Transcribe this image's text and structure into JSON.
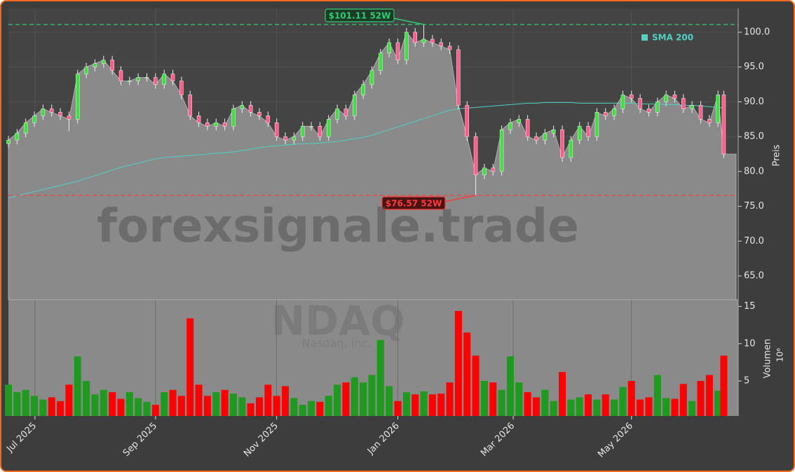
{
  "chart_data": {
    "type": "candlestick",
    "watermark": "forexsignale.trade",
    "ticker": "NDAQ",
    "company": "Nasdaq, Inc.",
    "x": [
      0,
      3,
      6,
      9,
      12,
      15,
      18,
      21,
      24,
      27,
      30,
      33,
      36,
      39,
      42,
      45,
      48,
      51,
      54,
      57,
      60,
      63,
      66,
      69,
      72,
      75,
      78,
      81,
      84,
      87,
      90,
      93,
      96,
      99,
      102,
      105,
      108,
      111,
      114,
      117,
      120,
      123,
      126,
      129,
      132,
      135,
      138,
      141,
      144,
      147,
      150,
      153,
      156,
      159,
      162,
      165,
      168,
      171,
      174,
      177,
      180,
      183,
      186,
      189,
      192,
      195,
      198,
      201,
      204,
      207,
      210,
      213,
      216,
      219,
      222,
      225,
      228,
      231,
      234,
      237,
      240,
      243,
      246,
      248
    ],
    "open": [
      84,
      84.5,
      85.5,
      87,
      88,
      89,
      88.5,
      88,
      87.5,
      94,
      95,
      95.5,
      96,
      94.5,
      93,
      93,
      93.5,
      93.5,
      92.5,
      94,
      93,
      91,
      88,
      87,
      86.5,
      87,
      86.5,
      89,
      89.5,
      88.5,
      88,
      87,
      85,
      84.5,
      85,
      86.5,
      86.5,
      85,
      87.5,
      89,
      88,
      91,
      92.5,
      94.5,
      97,
      98.5,
      96,
      100,
      98.5,
      99,
      98.5,
      98,
      97.5,
      89.5,
      85,
      79.5,
      80.5,
      80,
      86,
      87,
      87.5,
      85,
      84.5,
      85.5,
      86,
      82,
      84.5,
      86.5,
      85,
      88.5,
      88,
      89,
      91,
      90.5,
      89,
      88.5,
      90,
      91,
      90.5,
      89,
      89.5,
      87.5,
      87,
      91
    ],
    "high": [
      85.1,
      86.1,
      87.6,
      88.6,
      89.6,
      89.6,
      89.1,
      88.6,
      94.6,
      95.6,
      96.1,
      96.6,
      96.6,
      95.1,
      93.6,
      94.1,
      94.1,
      94.1,
      94.6,
      94.6,
      93.6,
      91.6,
      88.6,
      87.6,
      87.6,
      87.6,
      89.6,
      90.1,
      90.1,
      89.1,
      88.6,
      87.6,
      85.6,
      85.6,
      87.1,
      87.1,
      87.1,
      88.1,
      89.6,
      89.6,
      91.6,
      93.1,
      95.1,
      97.6,
      99.1,
      99.1,
      100.6,
      100.6,
      101.11,
      99.6,
      99.1,
      98.6,
      98.1,
      90.1,
      85.6,
      81.1,
      81.1,
      86.6,
      87.6,
      88.1,
      88.1,
      85.6,
      86.1,
      86.6,
      86.6,
      85.1,
      87.1,
      87.1,
      89.1,
      89.1,
      89.6,
      91.6,
      91.6,
      91.1,
      89.6,
      90.6,
      91.6,
      91.6,
      91.1,
      90.1,
      90.1,
      88.1,
      91.6,
      91.6
    ],
    "low": [
      83.4,
      83.9,
      84.9,
      86.4,
      87.4,
      87.9,
      87.4,
      85.8,
      86.9,
      93.4,
      94.4,
      94.9,
      93.9,
      92.4,
      92.4,
      92.4,
      92.9,
      91.9,
      91.9,
      92.4,
      90.4,
      87.4,
      86.4,
      85.9,
      85.9,
      85.9,
      85.9,
      88.4,
      87.9,
      87.4,
      86.4,
      84.4,
      83.9,
      83.9,
      84.4,
      85.9,
      84.4,
      84.4,
      86.9,
      87.4,
      87.4,
      90.4,
      91.9,
      93.9,
      96.4,
      95.4,
      95.4,
      97.9,
      97.9,
      97.9,
      97.4,
      96.9,
      88.9,
      84.4,
      76.57,
      78.9,
      79.4,
      79.4,
      85.4,
      86.4,
      84.4,
      83.9,
      83.9,
      84.9,
      81.4,
      81.4,
      83.9,
      84.4,
      84.4,
      87.4,
      87.4,
      88.4,
      89.9,
      88.4,
      87.9,
      87.9,
      89.4,
      89.9,
      88.4,
      88.4,
      86.9,
      86.4,
      86.4,
      81.9
    ],
    "close": [
      84.5,
      85.5,
      87,
      88,
      89,
      88.5,
      88,
      87.5,
      94,
      95,
      95.5,
      96,
      94.5,
      93,
      93,
      93.5,
      93.5,
      92.5,
      94,
      93,
      91,
      88,
      87,
      86.5,
      87,
      86.5,
      89,
      89.5,
      88.5,
      88,
      87,
      85,
      84.5,
      85,
      86.5,
      86.5,
      85,
      87.5,
      89,
      88,
      91,
      92.5,
      94.5,
      97,
      98.5,
      96,
      100,
      98.5,
      99,
      98.5,
      98,
      97.5,
      89.5,
      85,
      79.5,
      80.5,
      80,
      86,
      87,
      87.5,
      85,
      84.5,
      85.5,
      86,
      82,
      84.5,
      86.5,
      85,
      88.5,
      88,
      89,
      91,
      90.5,
      89,
      88.5,
      90,
      91,
      90.5,
      89,
      89.5,
      87.5,
      87,
      91,
      82.5
    ],
    "volume": [
      4.5,
      3.5,
      3.8,
      3,
      2.5,
      2.8,
      2.3,
      4.5,
      8.3,
      5,
      3.2,
      3.8,
      3.5,
      2.6,
      3.5,
      2.7,
      2.2,
      1.8,
      3.5,
      3.8,
      3,
      13.4,
      4.5,
      3,
      3.5,
      3.8,
      3.3,
      2.8,
      2,
      2.8,
      4.5,
      3,
      4.3,
      2.7,
      1.8,
      2.3,
      2.2,
      3,
      4.5,
      4.8,
      5.5,
      4.8,
      5.8,
      10.5,
      4.3,
      2.3,
      3.5,
      3.2,
      3.6,
      3.2,
      3.3,
      4.8,
      14.4,
      11.5,
      8.4,
      5,
      4.8,
      3.8,
      8.3,
      4.8,
      3.5,
      2.8,
      3.8,
      2.3,
      6.2,
      2.5,
      2.8,
      3.2,
      2.5,
      3.2,
      2.5,
      4.2,
      5,
      2.5,
      2.8,
      5.8,
      2.7,
      2.6,
      4.6,
      2.3,
      5,
      5.8,
      3.7,
      8.4
    ],
    "sma": {
      "name": "SMA 200",
      "color": "#4fd1c5",
      "values": [
        76.2,
        76.5,
        76.8,
        77.1,
        77.4,
        77.7,
        78.0,
        78.3,
        78.6,
        79.0,
        79.4,
        79.8,
        80.2,
        80.6,
        80.9,
        81.2,
        81.5,
        81.8,
        82.0,
        82.1,
        82.2,
        82.3,
        82.4,
        82.5,
        82.6,
        82.7,
        82.8,
        83.0,
        83.2,
        83.4,
        83.6,
        83.7,
        83.8,
        83.9,
        84.0,
        84.0,
        84.1,
        84.2,
        84.3,
        84.5,
        84.7,
        84.9,
        85.2,
        85.6,
        86.0,
        86.4,
        86.8,
        87.2,
        87.6,
        88.0,
        88.4,
        88.8,
        89.0,
        89.1,
        89.2,
        89.3,
        89.4,
        89.5,
        89.6,
        89.7,
        89.8,
        89.8,
        89.9,
        89.9,
        89.9,
        89.9,
        89.8,
        89.8,
        89.8,
        89.8,
        89.8,
        89.8,
        89.8,
        89.7,
        89.7,
        89.7,
        89.6,
        89.6,
        89.5,
        89.5,
        89.4,
        89.3,
        89.2,
        89.1
      ]
    },
    "annotations": [
      {
        "text": "$101.11 52W",
        "value": 101.11,
        "color": "#2ecc71"
      },
      {
        "text": "$76.57 52W",
        "value": 76.57,
        "color": "#ff3b3b"
      }
    ],
    "xlim": [
      0,
      253
    ],
    "xticks": [
      {
        "value": 9.2,
        "label": "Jul 2025"
      },
      {
        "value": 51,
        "label": "Sep 2025"
      },
      {
        "value": 93,
        "label": "Nov 2025"
      },
      {
        "value": 135,
        "label": "Jan 2026"
      },
      {
        "value": 175,
        "label": "Mar 2026"
      },
      {
        "value": 216,
        "label": "May 2026"
      }
    ],
    "ylim": [
      61.58,
      103.42
    ],
    "yticks": [
      {
        "value": 65,
        "label": "65.0"
      },
      {
        "value": 70,
        "label": "70.0"
      },
      {
        "value": 75,
        "label": "75.0"
      },
      {
        "value": 80,
        "label": "80.0"
      },
      {
        "value": 85,
        "label": "85.0"
      },
      {
        "value": 90,
        "label": "90.0"
      },
      {
        "value": 95,
        "label": "95.0"
      },
      {
        "value": 100,
        "label": "100.0"
      }
    ],
    "ylabel": "Preis",
    "volume_ylim": [
      0.3,
      15.9
    ],
    "volume_yticks": [
      5,
      10,
      15
    ],
    "volume_label": "Volumen",
    "volume_unit": "10⁶",
    "up_color": "#3ee03e",
    "down_color": "#ff5c8a",
    "volume_up_color": "#1e9a1e",
    "volume_down_color": "#ff0000",
    "grid": true
  }
}
